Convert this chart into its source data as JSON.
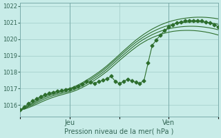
{
  "title": "",
  "xlabel": "Pression niveau de la mer( hPa )",
  "ylabel": "",
  "bg_color": "#c8ece8",
  "grid_color": "#a0ccc8",
  "line_color": "#2d6e2d",
  "ylim": [
    1015.3,
    1022.2
  ],
  "xlim": [
    0,
    48
  ],
  "tick_labels_x": [
    "",
    "Jeu",
    "",
    "Ven",
    ""
  ],
  "tick_positions_x": [
    0,
    12,
    24,
    36,
    48
  ],
  "yticks": [
    1016,
    1017,
    1018,
    1019,
    1020,
    1021,
    1022
  ],
  "vlines": [
    12,
    36
  ],
  "smooth_series": [
    [
      1015.7,
      1015.85,
      1016.0,
      1016.15,
      1016.3,
      1016.45,
      1016.55,
      1016.65,
      1016.72,
      1016.8,
      1016.87,
      1016.94,
      1017.01,
      1017.1,
      1017.22,
      1017.35,
      1017.5,
      1017.65,
      1017.82,
      1017.99,
      1018.18,
      1018.38,
      1018.6,
      1018.82,
      1019.05,
      1019.28,
      1019.5,
      1019.72,
      1019.93,
      1020.12,
      1020.3,
      1020.46,
      1020.61,
      1020.74,
      1020.86,
      1020.96,
      1021.05,
      1021.12,
      1021.18,
      1021.23,
      1021.27,
      1021.3,
      1021.32,
      1021.33,
      1021.33,
      1021.32,
      1021.3,
      1021.27,
      1021.23
    ],
    [
      1015.7,
      1015.82,
      1015.95,
      1016.08,
      1016.22,
      1016.36,
      1016.47,
      1016.57,
      1016.65,
      1016.72,
      1016.79,
      1016.86,
      1016.93,
      1017.02,
      1017.13,
      1017.26,
      1017.41,
      1017.56,
      1017.73,
      1017.9,
      1018.09,
      1018.29,
      1018.51,
      1018.73,
      1018.95,
      1019.17,
      1019.39,
      1019.6,
      1019.8,
      1019.98,
      1020.15,
      1020.3,
      1020.44,
      1020.56,
      1020.67,
      1020.76,
      1020.84,
      1020.9,
      1020.95,
      1020.99,
      1021.02,
      1021.04,
      1021.05,
      1021.05,
      1021.04,
      1021.02,
      1020.99,
      1020.95,
      1020.9
    ],
    [
      1015.7,
      1015.79,
      1015.9,
      1016.01,
      1016.14,
      1016.27,
      1016.38,
      1016.48,
      1016.57,
      1016.64,
      1016.71,
      1016.77,
      1016.84,
      1016.93,
      1017.04,
      1017.16,
      1017.3,
      1017.46,
      1017.62,
      1017.79,
      1017.97,
      1018.17,
      1018.39,
      1018.61,
      1018.83,
      1019.04,
      1019.25,
      1019.46,
      1019.66,
      1019.84,
      1020.0,
      1020.14,
      1020.27,
      1020.38,
      1020.48,
      1020.56,
      1020.63,
      1020.68,
      1020.72,
      1020.75,
      1020.77,
      1020.78,
      1020.78,
      1020.77,
      1020.75,
      1020.72,
      1020.68,
      1020.63,
      1020.57
    ],
    [
      1015.7,
      1015.75,
      1015.84,
      1015.94,
      1016.05,
      1016.17,
      1016.28,
      1016.38,
      1016.47,
      1016.55,
      1016.62,
      1016.69,
      1016.76,
      1016.84,
      1016.94,
      1017.06,
      1017.19,
      1017.34,
      1017.5,
      1017.67,
      1017.85,
      1018.04,
      1018.25,
      1018.47,
      1018.69,
      1018.9,
      1019.11,
      1019.31,
      1019.5,
      1019.68,
      1019.83,
      1019.97,
      1020.09,
      1020.19,
      1020.28,
      1020.36,
      1020.42,
      1020.47,
      1020.5,
      1020.52,
      1020.53,
      1020.53,
      1020.52,
      1020.5,
      1020.47,
      1020.43,
      1020.38,
      1020.32,
      1020.25
    ]
  ],
  "marker_series": [
    1015.7,
    1015.9,
    1016.1,
    1016.25,
    1016.38,
    1016.52,
    1016.62,
    1016.72,
    1016.78,
    1016.83,
    1016.88,
    1016.93,
    1016.98,
    1017.05,
    1017.15,
    1017.28,
    1017.42,
    1017.38,
    1017.32,
    1017.42,
    1017.5,
    1017.58,
    1017.75,
    1017.45,
    1017.3,
    1017.42,
    1017.56,
    1017.48,
    1017.38,
    1017.32,
    1017.48,
    1018.55,
    1019.62,
    1019.95,
    1020.25,
    1020.52,
    1020.72,
    1020.88,
    1020.98,
    1021.05,
    1021.1,
    1021.12,
    1021.13,
    1021.12,
    1021.1,
    1021.05,
    1020.98,
    1020.88,
    1020.75
  ],
  "marker": "D",
  "marker_size": 2.5
}
